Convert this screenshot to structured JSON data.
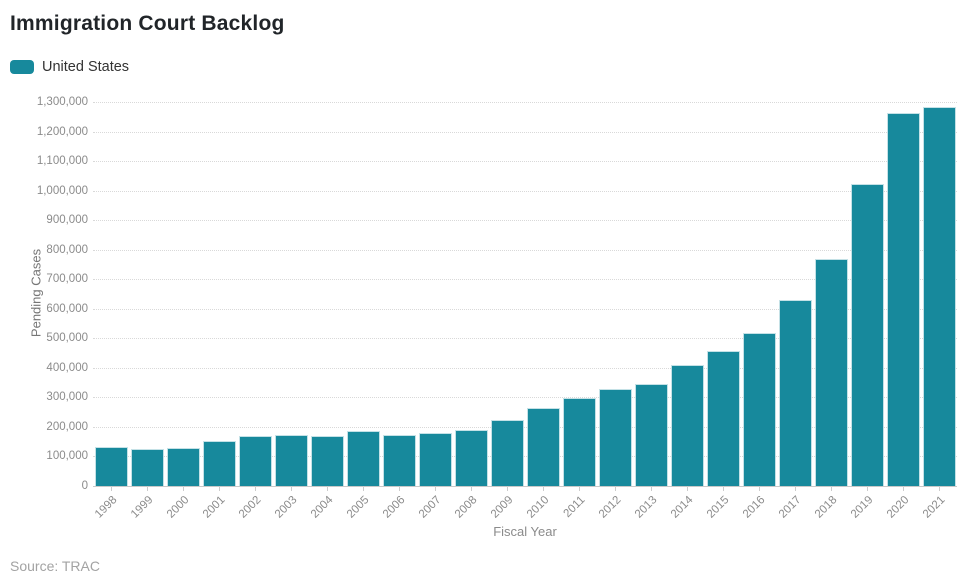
{
  "header": {
    "title": "Immigration Court Backlog"
  },
  "legend": {
    "label": "United States"
  },
  "colors": {
    "bar": "#17899c",
    "title_text": "#212529",
    "axis_text": "#8b8b8b",
    "gridline": "#d9d9d9",
    "baseline": "#c9c9c9",
    "source_text": "#a3a3a3"
  },
  "chart_data": {
    "type": "bar",
    "title": "Immigration Court Backlog",
    "xlabel": "Fiscal Year",
    "ylabel": "Pending Cases",
    "series_name": "United States",
    "legend_position": "top-left",
    "grid": "horizontal-dotted",
    "ylim": [
      0,
      1300000
    ],
    "ytick_interval": 100000,
    "categories": [
      "1998",
      "1999",
      "2000",
      "2001",
      "2002",
      "2003",
      "2004",
      "2005",
      "2006",
      "2007",
      "2008",
      "2009",
      "2010",
      "2011",
      "2012",
      "2013",
      "2014",
      "2015",
      "2016",
      "2017",
      "2018",
      "2019",
      "2020",
      "2021"
    ],
    "values": [
      133000,
      125000,
      129000,
      151000,
      169000,
      174000,
      171000,
      187000,
      173000,
      179000,
      190000,
      225000,
      264000,
      298000,
      327000,
      347000,
      410000,
      457000,
      517000,
      631000,
      769000,
      1023000,
      1263000,
      1282000
    ]
  },
  "footer": {
    "source": "Source: TRAC"
  }
}
